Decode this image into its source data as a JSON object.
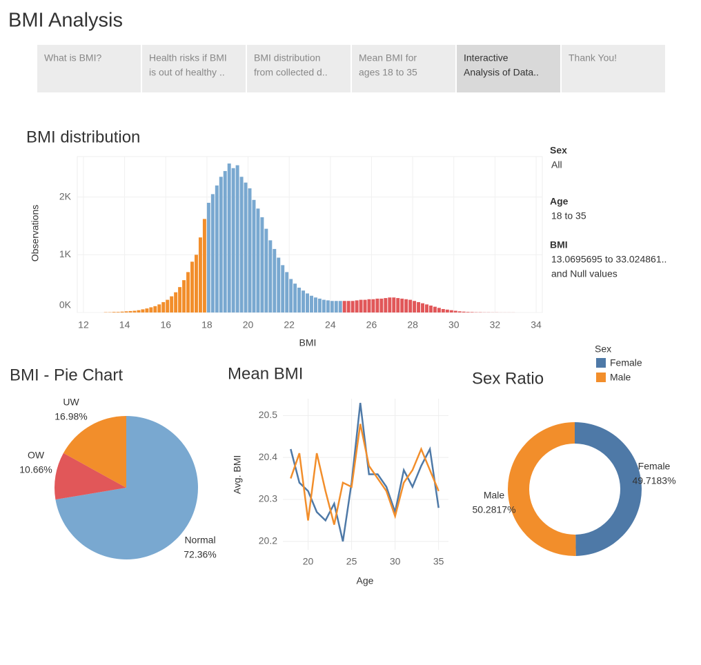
{
  "header": {
    "title": "BMI Analysis"
  },
  "tabs": [
    [
      "What is BMI?"
    ],
    [
      "Health risks if BMI",
      "is out of healthy .."
    ],
    [
      "BMI distribution",
      "from collected d.."
    ],
    [
      "Mean BMI for",
      "ages 18 to 35"
    ],
    [
      "Interactive",
      "Analysis of Data.."
    ],
    [
      "Thank You!"
    ]
  ],
  "active_tab": 4,
  "filters": [
    {
      "label": "Sex",
      "values": [
        "All"
      ]
    },
    {
      "label": "Age",
      "values": [
        "18 to 35"
      ]
    },
    {
      "label": "BMI",
      "values": [
        "13.0695695 to 33.024861..",
        "and Null values"
      ]
    }
  ],
  "chart_data": [
    {
      "type": "histogram",
      "title": "BMI distribution",
      "xlabel": "BMI",
      "ylabel": "Observations",
      "xlim": [
        11.7,
        34.3
      ],
      "xticks": [
        12,
        14,
        16,
        18,
        20,
        22,
        24,
        26,
        28,
        30,
        32,
        34
      ],
      "ylim": [
        0,
        2700
      ],
      "yticks": [
        {
          "value": 0,
          "label": "0K"
        },
        {
          "value": 1000,
          "label": "1K"
        },
        {
          "value": 2000,
          "label": "2K"
        }
      ],
      "grid": true,
      "series": [
        {
          "color": "#f28e2b",
          "bins": [
            13.0,
            13.2,
            13.4,
            13.6,
            13.8,
            14.0,
            14.2,
            14.4,
            14.6,
            14.8,
            15.0,
            15.2,
            15.4,
            15.6,
            15.8,
            16.0,
            16.2,
            16.4,
            16.6,
            16.8,
            17.0,
            17.2,
            17.4,
            17.6,
            17.8,
            18.0
          ],
          "counts": [
            5,
            5,
            10,
            10,
            15,
            20,
            25,
            30,
            40,
            55,
            70,
            90,
            110,
            140,
            180,
            220,
            280,
            350,
            440,
            560,
            700,
            880,
            1000,
            1300,
            1620
          ]
        },
        {
          "color": "#79a8d0",
          "bins": [
            18.0,
            18.2,
            18.4,
            18.6,
            18.8,
            19.0,
            19.2,
            19.4,
            19.6,
            19.8,
            20.0,
            20.2,
            20.4,
            20.6,
            20.8,
            21.0,
            21.2,
            21.4,
            21.6,
            21.8,
            22.0,
            22.2,
            22.4,
            22.6,
            22.8,
            23.0,
            23.2,
            23.4,
            23.6,
            23.8,
            24.0,
            24.2,
            24.4,
            24.6
          ],
          "counts": [
            1900,
            2050,
            2200,
            2350,
            2450,
            2580,
            2500,
            2550,
            2350,
            2250,
            2150,
            1950,
            1800,
            1650,
            1450,
            1250,
            1100,
            950,
            820,
            700,
            580,
            500,
            430,
            380,
            330,
            290,
            260,
            240,
            220,
            210,
            200,
            200,
            200
          ]
        },
        {
          "color": "#e15759",
          "bins": [
            24.6,
            24.8,
            25.0,
            25.2,
            25.4,
            25.6,
            25.8,
            26.0,
            26.2,
            26.4,
            26.6,
            26.8,
            27.0,
            27.2,
            27.4,
            27.6,
            27.8,
            28.0,
            28.2,
            28.4,
            28.6,
            28.8,
            29.0,
            29.2,
            29.4,
            29.6,
            29.8,
            30.0,
            30.2,
            30.4,
            30.6,
            30.8,
            31.0,
            31.2,
            31.4,
            31.6,
            31.8,
            32.0,
            32.2,
            32.4,
            32.6,
            32.8,
            33.0
          ],
          "counts": [
            200,
            200,
            200,
            210,
            220,
            220,
            230,
            230,
            240,
            240,
            250,
            260,
            260,
            250,
            240,
            230,
            220,
            200,
            180,
            160,
            140,
            120,
            100,
            80,
            60,
            50,
            40,
            30,
            20,
            15,
            10,
            8,
            5,
            5,
            3,
            3,
            2,
            2,
            1,
            1,
            1,
            1
          ]
        }
      ]
    },
    {
      "type": "pie",
      "title": "BMI - Pie Chart",
      "categories": [
        "Normal",
        "OW",
        "UW"
      ],
      "values": [
        72.36,
        10.66,
        16.98
      ],
      "value_labels": [
        "72.36%",
        "10.66%",
        "16.98%"
      ],
      "colors": [
        "#79a8d0",
        "#e15759",
        "#f28e2b"
      ]
    },
    {
      "type": "line",
      "title": "Mean BMI",
      "xlabel": "Age",
      "ylabel": "Avg. BMI",
      "x": [
        18,
        19,
        20,
        21,
        22,
        23,
        24,
        25,
        26,
        27,
        28,
        29,
        30,
        31,
        32,
        33,
        34,
        35
      ],
      "xlim": [
        17.5,
        35.5
      ],
      "xticks": [
        20,
        25,
        30,
        35
      ],
      "ylim": [
        20.18,
        20.54
      ],
      "yticks": [
        20.2,
        20.3,
        20.4,
        20.5
      ],
      "grid": true,
      "series": [
        {
          "name": "Female",
          "color": "#4e79a7",
          "values": [
            20.42,
            20.34,
            20.32,
            20.27,
            20.25,
            20.29,
            20.2,
            20.34,
            20.53,
            20.36,
            20.36,
            20.33,
            20.27,
            20.37,
            20.33,
            20.38,
            20.42,
            20.28
          ]
        },
        {
          "name": "Male",
          "color": "#f28e2b",
          "values": [
            20.35,
            20.41,
            20.25,
            20.41,
            20.32,
            20.24,
            20.34,
            20.33,
            20.48,
            20.38,
            20.35,
            20.32,
            20.26,
            20.34,
            20.37,
            20.42,
            20.37,
            20.32
          ]
        }
      ]
    },
    {
      "type": "donut",
      "title": "Sex Ratio",
      "legend_title": "Sex",
      "categories": [
        "Female",
        "Male"
      ],
      "values": [
        49.7183,
        50.2817
      ],
      "value_labels": [
        "49.7183%",
        "50.2817%"
      ],
      "colors": [
        "#4e79a7",
        "#f28e2b"
      ]
    }
  ]
}
